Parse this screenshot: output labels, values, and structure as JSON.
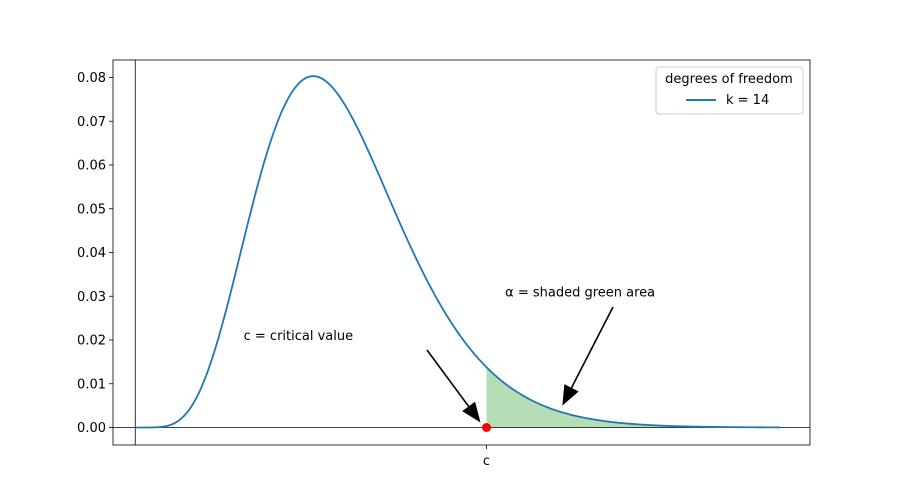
{
  "chart_data": {
    "type": "area",
    "title": "",
    "xlabel": "",
    "ylabel": "",
    "ylim": [
      -0.004,
      0.084
    ],
    "xlim": [
      -1.5,
      45.5
    ],
    "grid": false,
    "distribution": "chi-squared",
    "degrees_of_freedom": 14,
    "critical_value_x": 23.685,
    "x_max": 43.5,
    "y_ticks": [
      0.0,
      0.01,
      0.02,
      0.03,
      0.04,
      0.05,
      0.06,
      0.07,
      0.08
    ],
    "y_tick_labels": [
      "0.00",
      "0.01",
      "0.02",
      "0.03",
      "0.04",
      "0.05",
      "0.06",
      "0.07",
      "0.08"
    ],
    "x_tick_labels": [
      "c"
    ],
    "series": [
      {
        "name": "k = 14",
        "color": "#1f77b4"
      }
    ],
    "shaded_region": {
      "from": 23.685,
      "to": 43.5,
      "color": "#2ca02c"
    },
    "critical_point": {
      "x": 23.685,
      "y": 0.0,
      "color": "#ff0000"
    },
    "legend": {
      "title": "degrees of freedom",
      "placement": "top-right",
      "entries": [
        "k = 14"
      ]
    },
    "annotations": [
      {
        "text": "c = critical value",
        "x": 11.0,
        "y": 0.02,
        "target_x": 23.685,
        "target_y": 0.0
      },
      {
        "text": "α = shaded green area",
        "x": 30.0,
        "y": 0.03,
        "target_x": 28.8,
        "target_y": 0.005
      }
    ]
  }
}
